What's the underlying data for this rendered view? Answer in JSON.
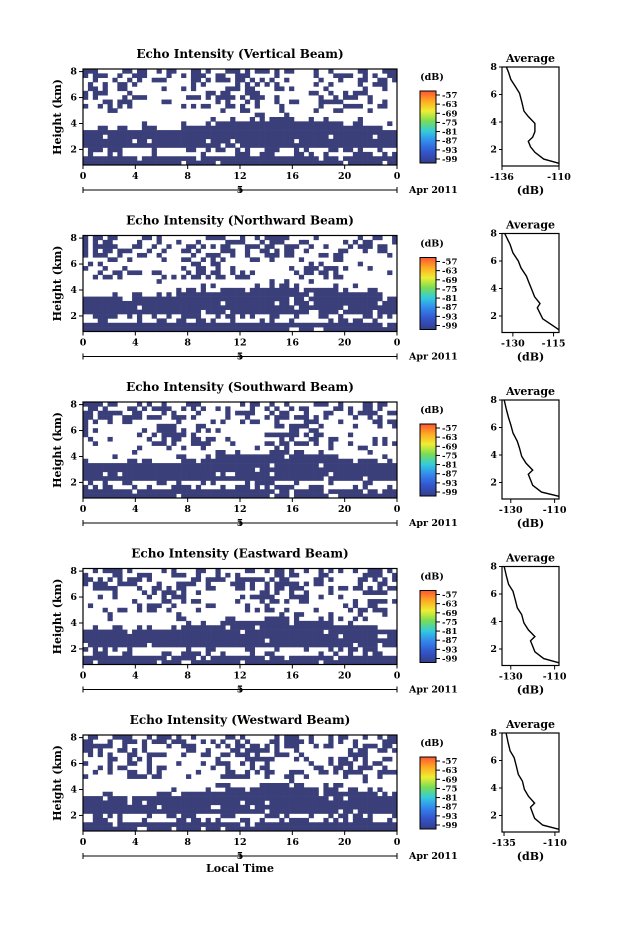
{
  "chart_data": [
    {
      "type": "heatmap",
      "title": "Echo Intensity (Vertical Beam)",
      "ylabel": "Height (km)",
      "x_ticks": [
        "0",
        "4",
        "8",
        "12",
        "16",
        "20",
        "0"
      ],
      "y_ticks": [
        "2",
        "4",
        "6",
        "8"
      ],
      "date_ticks": [
        "5"
      ],
      "date_label": "Apr 2011",
      "colorbar": {
        "label": "(dB)",
        "ticks": [
          "-57",
          "-63",
          "-69",
          "-75",
          "-81",
          "-87",
          "-93",
          "-99"
        ]
      },
      "profile": {
        "title": "Average",
        "xlabel": "(dB)",
        "x_ticks": [
          "-136",
          "-110"
        ],
        "y_ticks": [
          "2",
          "4",
          "6",
          "8"
        ],
        "xlim": [
          -136,
          -110
        ],
        "ylim": [
          0.8,
          8
        ],
        "x": [
          -110,
          -117,
          -121,
          -123,
          -124,
          -122,
          -121,
          -121,
          -124,
          -126,
          -127,
          -128,
          -130,
          -132,
          -133,
          -134
        ],
        "y": [
          1.0,
          1.3,
          1.8,
          2.2,
          2.6,
          2.9,
          3.3,
          3.9,
          4.4,
          4.8,
          5.5,
          6.1,
          6.6,
          7.1,
          7.6,
          8.0
        ]
      }
    },
    {
      "type": "heatmap",
      "title": "Echo Intensity (Northward Beam)",
      "ylabel": "Height (km)",
      "x_ticks": [
        "0",
        "4",
        "8",
        "12",
        "16",
        "20",
        "0"
      ],
      "y_ticks": [
        "2",
        "4",
        "6",
        "8"
      ],
      "date_ticks": [
        "5"
      ],
      "date_label": "Apr 2011",
      "colorbar": {
        "label": "(dB)",
        "ticks": [
          "-57",
          "-63",
          "-69",
          "-75",
          "-81",
          "-87",
          "-93",
          "-99"
        ]
      },
      "profile": {
        "title": "Average",
        "xlabel": "(dB)",
        "x_ticks": [
          "-130",
          "-115"
        ],
        "y_ticks": [
          "2",
          "4",
          "6",
          "8"
        ],
        "xlim": [
          -134,
          -113
        ],
        "ylim": [
          0.8,
          8
        ],
        "x": [
          -113,
          -116,
          -119,
          -120,
          -121,
          -120,
          -122,
          -123,
          -124,
          -125,
          -127,
          -128,
          -130,
          -131,
          -133
        ],
        "y": [
          1.0,
          1.4,
          1.8,
          2.2,
          2.6,
          2.9,
          3.4,
          3.9,
          4.4,
          4.9,
          5.5,
          6.0,
          6.6,
          7.2,
          8.0
        ]
      }
    },
    {
      "type": "heatmap",
      "title": "Echo Intensity (Southward Beam)",
      "ylabel": "Height (km)",
      "x_ticks": [
        "0",
        "4",
        "8",
        "12",
        "16",
        "20",
        "0"
      ],
      "y_ticks": [
        "2",
        "4",
        "6",
        "8"
      ],
      "date_ticks": [
        "5"
      ],
      "date_label": "Apr 2011",
      "colorbar": {
        "label": "(dB)",
        "ticks": [
          "-57",
          "-63",
          "-69",
          "-75",
          "-81",
          "-87",
          "-93",
          "-99"
        ]
      },
      "profile": {
        "title": "Average",
        "xlabel": "(dB)",
        "x_ticks": [
          "-130",
          "-110"
        ],
        "y_ticks": [
          "2",
          "4",
          "6",
          "8"
        ],
        "xlim": [
          -134,
          -108
        ],
        "ylim": [
          0.8,
          8
        ],
        "x": [
          -108,
          -116,
          -120,
          -121,
          -122,
          -120,
          -123,
          -125,
          -126,
          -127,
          -129,
          -130,
          -131,
          -132,
          -133
        ],
        "y": [
          1.0,
          1.3,
          1.8,
          2.2,
          2.6,
          2.9,
          3.4,
          3.9,
          4.5,
          5.0,
          5.6,
          6.2,
          6.7,
          7.3,
          8.0
        ]
      }
    },
    {
      "type": "heatmap",
      "title": "Echo Intensity (Eastward Beam)",
      "ylabel": "Height (km)",
      "x_ticks": [
        "0",
        "4",
        "8",
        "12",
        "16",
        "20",
        "0"
      ],
      "y_ticks": [
        "2",
        "4",
        "6",
        "8"
      ],
      "date_ticks": [
        "5"
      ],
      "date_label": "Apr 2011",
      "colorbar": {
        "label": "(dB)",
        "ticks": [
          "-57",
          "-63",
          "-69",
          "-75",
          "-81",
          "-87",
          "-93",
          "-99"
        ]
      },
      "profile": {
        "title": "Average",
        "xlabel": "(dB)",
        "x_ticks": [
          "-130",
          "-110"
        ],
        "y_ticks": [
          "2",
          "4",
          "6",
          "8"
        ],
        "xlim": [
          -134,
          -108
        ],
        "ylim": [
          0.8,
          8
        ],
        "x": [
          -108,
          -115,
          -119,
          -120,
          -121,
          -119,
          -122,
          -124,
          -125,
          -127,
          -128,
          -129,
          -131,
          -132,
          -133
        ],
        "y": [
          1.0,
          1.3,
          1.8,
          2.2,
          2.6,
          2.9,
          3.4,
          3.9,
          4.5,
          5.0,
          5.6,
          6.2,
          6.7,
          7.3,
          8.0
        ]
      }
    },
    {
      "type": "heatmap",
      "title": "Echo Intensity (Westward Beam)",
      "ylabel": "Height (km)",
      "xlabel": "Local Time",
      "x_ticks": [
        "0",
        "4",
        "8",
        "12",
        "16",
        "20",
        "0"
      ],
      "y_ticks": [
        "2",
        "4",
        "6",
        "8"
      ],
      "date_ticks": [
        "5"
      ],
      "date_label": "Apr 2011",
      "colorbar": {
        "label": "(dB)",
        "ticks": [
          "-57",
          "-63",
          "-69",
          "-75",
          "-81",
          "-87",
          "-93",
          "-99"
        ]
      },
      "profile": {
        "title": "Average",
        "xlabel": "(dB)",
        "x_ticks": [
          "-135",
          "-110"
        ],
        "y_ticks": [
          "2",
          "4",
          "6",
          "8"
        ],
        "xlim": [
          -136,
          -108
        ],
        "ylim": [
          0.8,
          8
        ],
        "x": [
          -108,
          -116,
          -120,
          -121,
          -122,
          -120,
          -123,
          -125,
          -126,
          -128,
          -129,
          -130,
          -132,
          -133,
          -134
        ],
        "y": [
          1.0,
          1.3,
          1.8,
          2.2,
          2.6,
          2.9,
          3.4,
          3.9,
          4.5,
          5.0,
          5.6,
          6.2,
          6.7,
          7.3,
          8.0
        ]
      }
    }
  ],
  "colors": {
    "echo": "#3a3f7a",
    "colorbar_gradient": [
      "#ff5533",
      "#ffaa22",
      "#eeee33",
      "#77dd55",
      "#33ccdd",
      "#3388ee",
      "#3355cc",
      "#333d88"
    ]
  }
}
